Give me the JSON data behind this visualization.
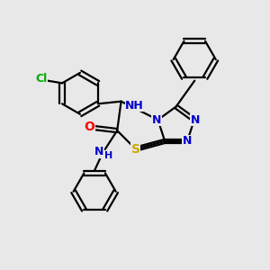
{
  "background_color": "#e8e8e8",
  "bond_color": "#000000",
  "atom_colors": {
    "N": "#0000cc",
    "S": "#ccaa00",
    "O": "#ff0000",
    "Cl": "#00aa00",
    "C": "#000000"
  },
  "figsize": [
    3.0,
    3.0
  ],
  "dpi": 100
}
